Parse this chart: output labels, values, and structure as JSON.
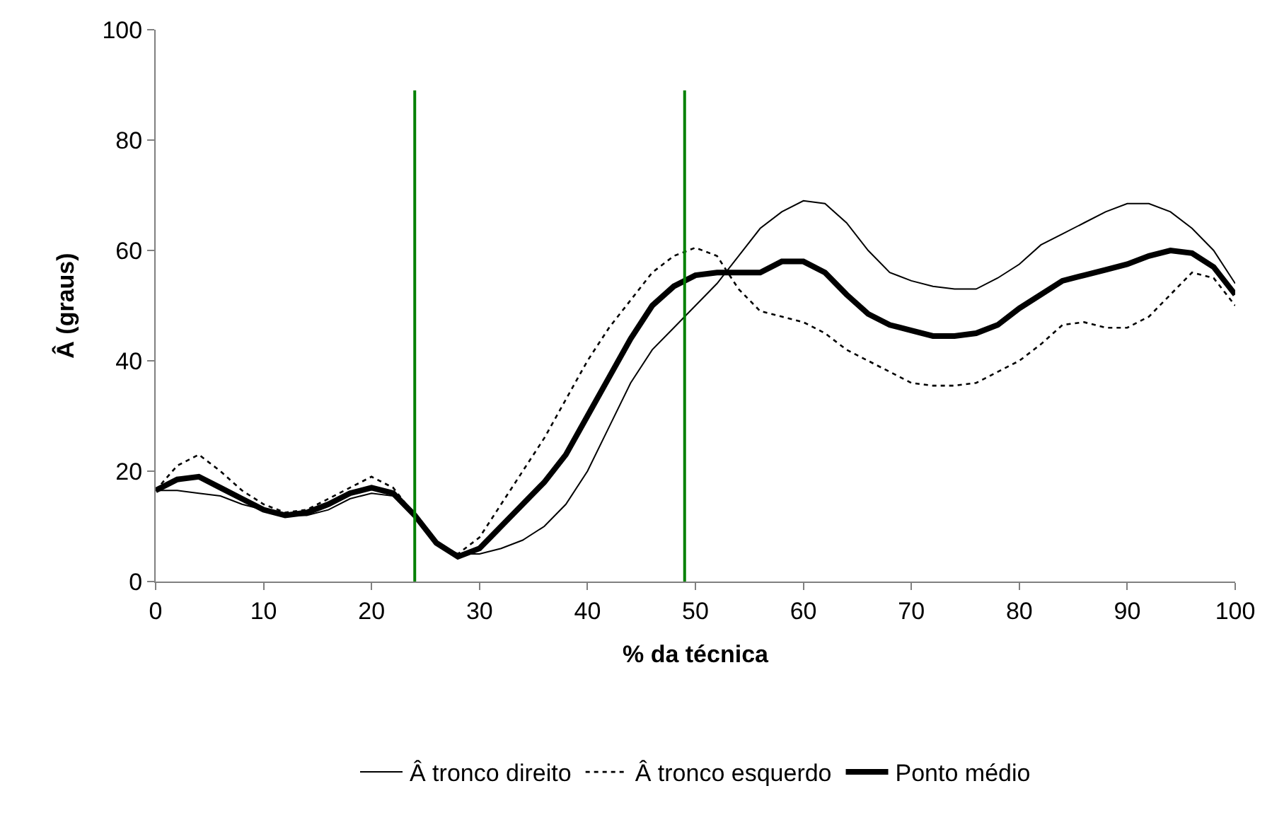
{
  "chart_data": {
    "type": "line",
    "xlabel": "% da técnica",
    "ylabel": "Â (graus)",
    "x": [
      0,
      2,
      4,
      6,
      8,
      10,
      12,
      14,
      16,
      18,
      20,
      22,
      24,
      26,
      28,
      30,
      32,
      34,
      36,
      38,
      40,
      42,
      44,
      46,
      48,
      50,
      52,
      54,
      56,
      58,
      60,
      62,
      64,
      66,
      68,
      70,
      72,
      74,
      76,
      78,
      80,
      82,
      84,
      86,
      88,
      90,
      92,
      94,
      96,
      98,
      100
    ],
    "series": [
      {
        "name": "Â tronco direito",
        "color": "#000000",
        "line_style": "solid",
        "values": [
          16.5,
          16.5,
          16,
          15.5,
          14,
          13,
          12,
          12,
          13,
          15,
          16,
          15.5,
          12,
          7,
          5,
          5,
          6,
          7.5,
          10,
          14,
          20,
          28,
          36,
          42,
          46,
          50,
          54,
          59,
          64,
          67,
          69,
          68.5,
          65,
          60,
          56,
          54.5,
          53.5,
          53,
          53,
          55,
          57.5,
          61,
          63,
          65,
          67,
          68.5,
          68.5,
          67,
          64,
          60,
          54
        ]
      },
      {
        "name": "Â tronco esquerdo",
        "color": "#000000",
        "line_style": "dotted",
        "values": [
          16.5,
          21,
          23,
          20,
          16.5,
          14,
          12.5,
          13,
          15,
          17,
          19,
          17,
          12,
          7,
          5,
          8,
          14,
          20,
          26,
          33,
          40,
          46,
          51,
          56,
          59,
          60.5,
          59,
          53,
          49,
          48,
          47,
          45,
          42,
          40,
          38,
          36,
          35.5,
          35.5,
          36,
          38,
          40,
          43,
          46.5,
          47,
          46,
          46,
          48,
          52,
          56,
          55,
          50
        ]
      },
      {
        "name": "Ponto médio",
        "color": "#000000",
        "line_style": "solid",
        "values": [
          16.5,
          18.5,
          19,
          17,
          15,
          13,
          12,
          12.5,
          14,
          16,
          17,
          16,
          12,
          7,
          4.5,
          6,
          10,
          14,
          18,
          23,
          30,
          37,
          44,
          50,
          53.5,
          55.5,
          56,
          56,
          56,
          58,
          58,
          56,
          52,
          48.5,
          46.5,
          45.5,
          44.5,
          44.5,
          45,
          46.5,
          49.5,
          52,
          54.5,
          55.5,
          56.5,
          57.5,
          59,
          60,
          59.5,
          57,
          52
        ]
      }
    ],
    "xlim": [
      0,
      100
    ],
    "xticks": [
      0,
      10,
      20,
      30,
      40,
      50,
      60,
      70,
      80,
      90,
      100
    ],
    "ylim": [
      0,
      100
    ],
    "yticks": [
      0,
      20,
      40,
      60,
      80,
      100
    ],
    "ref_lines": [
      {
        "axis": "x",
        "value": 24,
        "color": "#008000"
      },
      {
        "axis": "x",
        "value": 49,
        "color": "#008000"
      }
    ],
    "legend": "bottom",
    "marker": "none"
  }
}
